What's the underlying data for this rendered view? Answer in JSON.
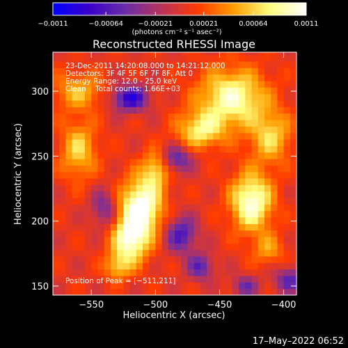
{
  "chart_data": {
    "type": "heatmap",
    "title": "Reconstructed RHESSI Image",
    "xlabel": "Heliocentric X (arcsec)",
    "ylabel": "Heliocentric Y (arcsec)",
    "xlim": [
      -580,
      -390
    ],
    "ylim": [
      143,
      330
    ],
    "xticks": [
      -550,
      -500,
      -450,
      -400
    ],
    "xtick_labels": [
      "−550",
      "−500",
      "−450",
      "−400"
    ],
    "yticks": [
      150,
      200,
      250,
      300
    ],
    "ytick_labels": [
      "150",
      "200",
      "250",
      "300"
    ],
    "colorbar": {
      "ticks": [
        -0.0011,
        -0.00064,
        -0.00021,
        0.00021,
        0.00064,
        0.0011
      ],
      "tick_labels": [
        "−0.0011",
        "−0.00064",
        "−0.00021",
        "0.00021",
        "0.00064",
        "0.0011"
      ],
      "unit_label": "(photons cm⁻² s⁻¹ asec⁻²)",
      "colormap": [
        "#0000ff",
        "#3a00c8",
        "#6a2da8",
        "#b8345a",
        "#ff3a00",
        "#ff9d00",
        "#ffff80",
        "#ffffff"
      ]
    },
    "annotations": [
      "23-Dec-2011 14:20:08.000 to 14:21:12.000",
      "Detectors: 3F 4F 5F 6F 7F 8F, Att 0",
      "Energy Range: 12.0 - 25.0 keV",
      "Clean    Total counts: 1.66E+03"
    ],
    "peak_label": "Position of Peak = [−511,211]",
    "peak": [
      -511,
      211
    ],
    "blobs": [
      {
        "x": -511,
        "y": 211,
        "rx": 16,
        "ry": 22,
        "v": 0.0011
      },
      {
        "x": -520,
        "y": 185,
        "rx": 14,
        "ry": 18,
        "v": 0.0009
      },
      {
        "x": -500,
        "y": 240,
        "rx": 10,
        "ry": 14,
        "v": 0.0006
      },
      {
        "x": -560,
        "y": 300,
        "rx": 20,
        "ry": 14,
        "v": 0.0005
      },
      {
        "x": -560,
        "y": 255,
        "rx": 14,
        "ry": 22,
        "v": 0.0006
      },
      {
        "x": -440,
        "y": 295,
        "rx": 26,
        "ry": 22,
        "v": 0.0009
      },
      {
        "x": -465,
        "y": 270,
        "rx": 18,
        "ry": 14,
        "v": 0.0007
      },
      {
        "x": -410,
        "y": 265,
        "rx": 16,
        "ry": 20,
        "v": 0.0006
      },
      {
        "x": -425,
        "y": 215,
        "rx": 16,
        "ry": 22,
        "v": 0.001
      },
      {
        "x": -412,
        "y": 178,
        "rx": 12,
        "ry": 12,
        "v": 0.0004
      },
      {
        "x": -530,
        "y": 165,
        "rx": 10,
        "ry": 10,
        "v": 0.0005
      },
      {
        "x": -520,
        "y": 295,
        "rx": 14,
        "ry": 10,
        "v": -0.0009
      },
      {
        "x": -483,
        "y": 248,
        "rx": 12,
        "ry": 10,
        "v": -0.0006
      },
      {
        "x": -480,
        "y": 190,
        "rx": 12,
        "ry": 14,
        "v": -0.0007
      },
      {
        "x": -465,
        "y": 165,
        "rx": 10,
        "ry": 10,
        "v": -0.0006
      },
      {
        "x": -540,
        "y": 210,
        "rx": 10,
        "ry": 14,
        "v": -0.0005
      },
      {
        "x": -395,
        "y": 155,
        "rx": 12,
        "ry": 10,
        "v": -0.0006
      },
      {
        "x": -430,
        "y": 150,
        "rx": 10,
        "ry": 8,
        "v": -0.0005
      }
    ]
  },
  "timestamp": "17–May–2022 06:52"
}
